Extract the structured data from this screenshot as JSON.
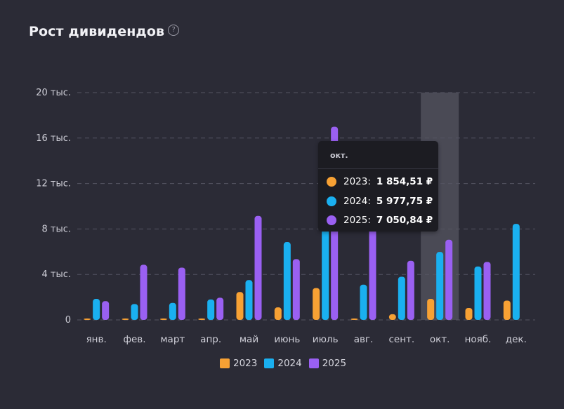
{
  "title": "Рост дивидендов",
  "help_icon": "question-circle-icon",
  "chart_data": {
    "type": "bar",
    "categories": [
      "янв.",
      "фев.",
      "март",
      "апр.",
      "май",
      "июнь",
      "июль",
      "авг.",
      "сент.",
      "окт.",
      "нояб.",
      "дек."
    ],
    "yticks": [
      "0",
      "4 тыс.",
      "8 тыс.",
      "12 тыс.",
      "16 тыс.",
      "20 тыс."
    ],
    "ylim": [
      0,
      20000
    ],
    "grid": true,
    "legend_position": "bottom-center",
    "highlighted_category": "окт.",
    "series": [
      {
        "name": "2023",
        "color": "#f7a134",
        "values": [
          80,
          60,
          90,
          30,
          2450,
          1100,
          2800,
          90,
          500,
          1854.51,
          1050,
          1700
        ]
      },
      {
        "name": "2024",
        "color": "#1ab0f0",
        "values": [
          1850,
          1400,
          1500,
          1800,
          3500,
          6850,
          11100,
          3100,
          3800,
          5977.75,
          4700,
          8450
        ]
      },
      {
        "name": "2025",
        "color": "#9a60f2",
        "values": [
          1650,
          4850,
          4600,
          1950,
          9150,
          5350,
          17000,
          14450,
          5200,
          7050.84,
          5100,
          0
        ]
      }
    ]
  },
  "tooltip": {
    "header": "окт.",
    "rows": [
      {
        "label": "2023:",
        "value": "1 854,51 ₽"
      },
      {
        "label": "2024:",
        "value": "5 977,75 ₽"
      },
      {
        "label": "2025:",
        "value": "7 050,84 ₽"
      }
    ]
  }
}
